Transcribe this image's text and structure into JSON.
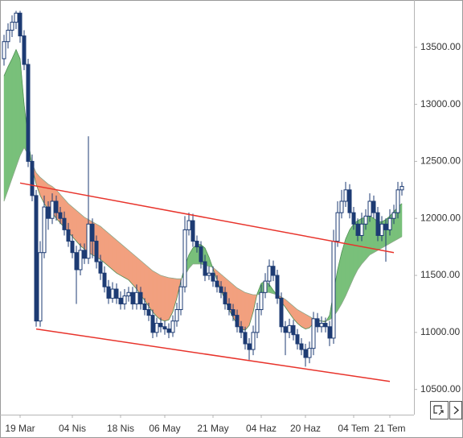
{
  "chart_data": {
    "type": "candlestick",
    "categories": [
      null,
      null,
      null,
      null,
      "19 Mar",
      null,
      null,
      null,
      null,
      null,
      null,
      null,
      null,
      null,
      null,
      null,
      null,
      "04 Nis",
      null,
      null,
      null,
      null,
      null,
      null,
      null,
      null,
      null,
      null,
      null,
      "18 Nis",
      null,
      null,
      null,
      null,
      null,
      null,
      null,
      null,
      null,
      null,
      "06 May",
      null,
      null,
      null,
      null,
      null,
      null,
      null,
      null,
      null,
      null,
      null,
      "21 May",
      null,
      null,
      null,
      null,
      null,
      null,
      null,
      null,
      null,
      null,
      null,
      "04 Haz",
      null,
      null,
      null,
      null,
      null,
      null,
      null,
      null,
      null,
      null,
      "20 Haz",
      null,
      null,
      null,
      null,
      null,
      null,
      null,
      null,
      null,
      null,
      null,
      "04 Tem",
      null,
      null,
      null,
      null,
      null,
      null,
      null,
      null,
      "21 Tem",
      null,
      null,
      null
    ],
    "open": [
      13400,
      13550,
      13650,
      13720,
      13800,
      13600,
      13350,
      12500,
      12200,
      11100,
      11700,
      12100,
      12000,
      12150,
      12050,
      12000,
      11900,
      11800,
      11700,
      11550,
      11720,
      11650,
      11950,
      11800,
      11620,
      11520,
      11400,
      11300,
      11380,
      11300,
      11250,
      11320,
      11350,
      11250,
      11350,
      11250,
      11200,
      11150,
      11000,
      11080,
      11050,
      11030,
      11000,
      11100,
      11200,
      11400,
      11900,
      11980,
      11800,
      11750,
      11620,
      11500,
      11520,
      11450,
      11400,
      11350,
      11250,
      11200,
      11150,
      11050,
      11000,
      10900,
      10850,
      11000,
      11200,
      11350,
      11450,
      11580,
      11500,
      11300,
      11050,
      11000,
      11060,
      10980,
      10900,
      10850,
      10780,
      10860,
      11120,
      11050,
      11080,
      11050,
      10950,
      11800,
      12050,
      12150,
      12250,
      12050,
      11950,
      11850,
      11950,
      12020,
      12150,
      12050,
      11850,
      11950,
      11900,
      12000,
      12050,
      12250
    ],
    "high": [
      13610,
      13710,
      13780,
      13820,
      13820,
      13650,
      13400,
      12560,
      12250,
      11800,
      12200,
      12150,
      12220,
      12200,
      12100,
      12060,
      11960,
      11860,
      11760,
      11780,
      11780,
      12720,
      12000,
      11850,
      11680,
      11580,
      11460,
      11440,
      11430,
      11360,
      11380,
      11400,
      11400,
      11420,
      11400,
      11300,
      11260,
      11200,
      11130,
      11130,
      11100,
      11080,
      11150,
      11260,
      11460,
      12020,
      12050,
      12040,
      11850,
      11800,
      11680,
      11580,
      11580,
      11500,
      11450,
      11400,
      11300,
      11250,
      11200,
      11100,
      11050,
      10950,
      11060,
      11260,
      11420,
      11520,
      11640,
      11630,
      11550,
      11350,
      11100,
      11120,
      11110,
      11030,
      10950,
      10900,
      10920,
      11180,
      11170,
      11140,
      11130,
      11100,
      11900,
      12150,
      12250,
      12320,
      12300,
      12100,
      12000,
      12050,
      12080,
      12220,
      12200,
      12100,
      12020,
      12000,
      12080,
      12120,
      12320,
      12320
    ],
    "low": [
      13340,
      13490,
      13590,
      13660,
      13540,
      13300,
      12450,
      12150,
      11050,
      11050,
      11650,
      11900,
      11950,
      11980,
      11950,
      11850,
      11750,
      11650,
      11250,
      11500,
      11600,
      11600,
      11650,
      11560,
      11460,
      11350,
      11250,
      11260,
      11250,
      11200,
      11200,
      11270,
      11200,
      11200,
      11200,
      11150,
      11100,
      10950,
      10960,
      11000,
      10980,
      10950,
      10960,
      11050,
      11150,
      11350,
      11850,
      11750,
      11700,
      11560,
      11450,
      11460,
      11400,
      11350,
      11300,
      11200,
      11150,
      11100,
      11000,
      10950,
      10850,
      10760,
      10800,
      10950,
      11150,
      11300,
      11400,
      11450,
      11250,
      11000,
      10800,
      10950,
      10930,
      10850,
      10800,
      10700,
      10730,
      10800,
      11000,
      11000,
      11000,
      10880,
      10900,
      11750,
      12000,
      12100,
      12000,
      11900,
      11800,
      11800,
      11900,
      11970,
      12000,
      11800,
      11800,
      11620,
      11850,
      11950,
      12000,
      12200
    ],
    "close": [
      13550,
      13650,
      13720,
      13800,
      13600,
      13350,
      12500,
      12200,
      11100,
      11700,
      12100,
      12000,
      12150,
      12050,
      12000,
      11900,
      11800,
      11700,
      11550,
      11720,
      11650,
      11950,
      11800,
      11620,
      11520,
      11400,
      11300,
      11380,
      11300,
      11250,
      11320,
      11350,
      11250,
      11350,
      11250,
      11200,
      11150,
      11000,
      11080,
      11050,
      11030,
      11000,
      11100,
      11200,
      11400,
      11900,
      11980,
      11800,
      11750,
      11620,
      11500,
      11520,
      11450,
      11400,
      11350,
      11250,
      11200,
      11150,
      11050,
      11000,
      10900,
      10850,
      11000,
      11200,
      11350,
      11450,
      11580,
      11500,
      11300,
      11050,
      11000,
      11060,
      10980,
      10900,
      10850,
      10780,
      10860,
      11120,
      11050,
      11080,
      11050,
      10950,
      11800,
      12050,
      12150,
      12250,
      12050,
      11950,
      11850,
      11950,
      12020,
      12150,
      12050,
      11850,
      11950,
      11900,
      12000,
      12050,
      12250,
      12280
    ],
    "candle_color": "#1d3b73",
    "cloud": {
      "span_a": [
        13250,
        13330,
        13400,
        13480,
        13400,
        13000,
        12700,
        12450,
        12300,
        12200,
        12130,
        12080,
        12050,
        12000,
        11960,
        11920,
        11880,
        11840,
        11800,
        11760,
        11730,
        11700,
        11680,
        11660,
        11640,
        11610,
        11580,
        11550,
        11520,
        11500,
        11480,
        11460,
        11420,
        11380,
        11330,
        11280,
        11230,
        11180,
        11140,
        11110,
        11100,
        11110,
        11180,
        11300,
        11450,
        11580,
        11680,
        11740,
        11770,
        11770,
        11740,
        11660,
        11560,
        11460,
        11370,
        11280,
        11200,
        11130,
        11070,
        11030,
        11020,
        11060,
        11180,
        11340,
        11430,
        11450,
        11420,
        11370,
        11320,
        11270,
        11220,
        11170,
        11120,
        11080,
        11050,
        11030,
        11040,
        11080,
        11100,
        11100,
        11090,
        11150,
        11350,
        11550,
        11700,
        11820,
        11900,
        11950,
        11980,
        12000,
        12010,
        12020,
        12000,
        11970,
        11970,
        11990,
        12020,
        12060,
        12100,
        12130
      ],
      "span_b": [
        12150,
        12250,
        12350,
        12450,
        12550,
        12620,
        12560,
        12480,
        12400,
        12360,
        12330,
        12300,
        12280,
        12250,
        12210,
        12170,
        12130,
        12100,
        12070,
        12040,
        12010,
        11990,
        11970,
        11950,
        11930,
        11900,
        11870,
        11840,
        11810,
        11780,
        11750,
        11720,
        11690,
        11660,
        11630,
        11600,
        11570,
        11540,
        11520,
        11500,
        11490,
        11480,
        11475,
        11470,
        11470,
        11500,
        11560,
        11600,
        11600,
        11600,
        11590,
        11580,
        11570,
        11540,
        11510,
        11480,
        11450,
        11420,
        11390,
        11370,
        11350,
        11340,
        11330,
        11330,
        11340,
        11350,
        11350,
        11340,
        11330,
        11310,
        11290,
        11260,
        11230,
        11200,
        11180,
        11160,
        11140,
        11120,
        11110,
        11100,
        11100,
        11110,
        11140,
        11190,
        11250,
        11320,
        11400,
        11480,
        11550,
        11600,
        11640,
        11680,
        11700,
        11720,
        11740,
        11760,
        11780,
        11800,
        11820,
        11840
      ],
      "up_color": "#79c07a",
      "down_color": "#f2a07f"
    },
    "trendlines": [
      {
        "x": [
          4,
          97
        ],
        "values": [
          12310,
          11700
        ],
        "color": "#e8342c"
      },
      {
        "x": [
          8,
          96
        ],
        "values": [
          11030,
          10570
        ],
        "color": "#e8342c"
      }
    ],
    "ylim": [
      10300,
      13915
    ],
    "yticks": [
      {
        "value": 10500,
        "label": "10500.00"
      },
      {
        "value": 11000,
        "label": "11000.00"
      },
      {
        "value": 11500,
        "label": "11500.00"
      },
      {
        "value": 12000,
        "label": "12000.00"
      },
      {
        "value": 12500,
        "label": "12500.00"
      },
      {
        "value": 13000,
        "label": "13000.00"
      },
      {
        "value": 13500,
        "label": "13500.00"
      }
    ]
  }
}
